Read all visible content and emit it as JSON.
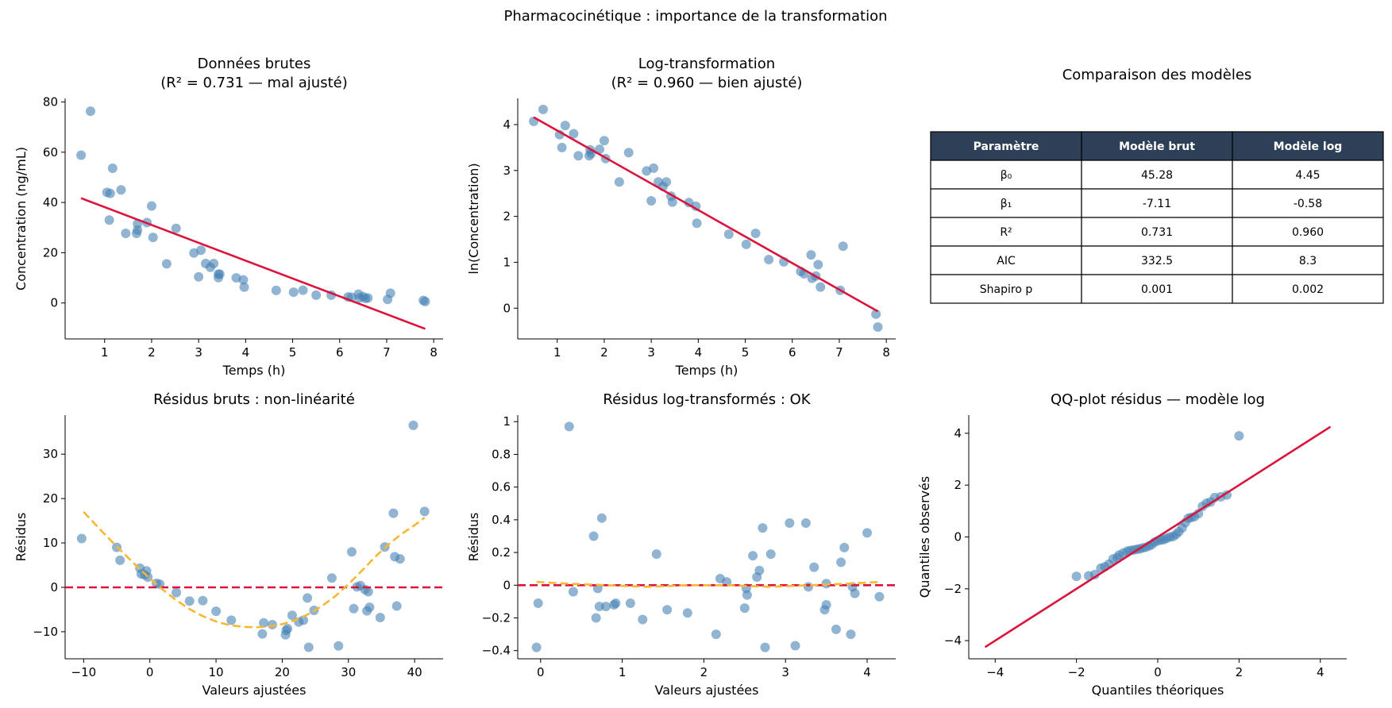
{
  "suptitle": "Pharmacocinétique : importance de la transformation",
  "colors": {
    "points": "#4682b4",
    "fit_line": "#dc143c",
    "lowess": "#f7b733",
    "table_header_bg": "#2e4057",
    "table_header_text": "#ffffff"
  },
  "table": {
    "title": "Comparaison des modèles",
    "headers": [
      "Paramètre",
      "Modèle brut",
      "Modèle log"
    ],
    "rows": [
      [
        "β₀",
        "45.28",
        "4.45"
      ],
      [
        "β₁",
        "-7.11",
        "-0.58"
      ],
      [
        "R²",
        "0.731",
        "0.960"
      ],
      [
        "AIC",
        "332.5",
        "8.3"
      ],
      [
        "Shapiro p",
        "0.001",
        "0.002"
      ]
    ]
  },
  "chart_data": [
    {
      "id": "raw",
      "type": "scatter",
      "title_lines": [
        "Données brutes",
        "(R² = 0.731 — mal ajusté)"
      ],
      "xlabel": "Temps (h)",
      "ylabel": "Concentration (ng/mL)",
      "xlim": [
        0.16,
        8.2
      ],
      "ylim": [
        -14.3,
        81.4
      ],
      "xticks": [
        1,
        2,
        3,
        4,
        5,
        6,
        7,
        8
      ],
      "yticks": [
        0,
        20,
        40,
        60,
        80
      ],
      "points": [
        [
          0.5,
          58.8
        ],
        [
          0.7,
          76.3
        ],
        [
          1.05,
          44.0
        ],
        [
          1.1,
          33.0
        ],
        [
          1.12,
          43.6
        ],
        [
          1.17,
          53.6
        ],
        [
          1.35,
          45.0
        ],
        [
          1.45,
          27.7
        ],
        [
          1.68,
          27.7
        ],
        [
          1.7,
          31.5
        ],
        [
          1.7,
          29.0
        ],
        [
          1.9,
          32.0
        ],
        [
          2.0,
          38.6
        ],
        [
          2.03,
          26.1
        ],
        [
          2.32,
          15.6
        ],
        [
          2.52,
          29.7
        ],
        [
          2.9,
          19.9
        ],
        [
          3.0,
          10.4
        ],
        [
          3.05,
          21.0
        ],
        [
          3.15,
          15.7
        ],
        [
          3.25,
          14.2
        ],
        [
          3.32,
          15.7
        ],
        [
          3.42,
          10.1
        ],
        [
          3.42,
          11.5
        ],
        [
          3.45,
          11.5
        ],
        [
          3.8,
          10.0
        ],
        [
          3.95,
          9.2
        ],
        [
          3.97,
          6.3
        ],
        [
          4.65,
          5.0
        ],
        [
          5.02,
          4.3
        ],
        [
          5.22,
          5.1
        ],
        [
          5.5,
          3.1
        ],
        [
          5.82,
          3.1
        ],
        [
          6.18,
          2.4
        ],
        [
          6.25,
          2.3
        ],
        [
          6.4,
          3.5
        ],
        [
          6.42,
          2.0
        ],
        [
          6.5,
          2.5
        ],
        [
          6.55,
          1.8
        ],
        [
          6.6,
          2.0
        ],
        [
          7.02,
          1.4
        ],
        [
          7.08,
          3.9
        ],
        [
          7.78,
          1.0
        ],
        [
          7.82,
          0.6
        ]
      ],
      "lines": [
        {
          "style": "solid",
          "color": "#dc143c",
          "points": [
            [
              0.5,
              41.7
            ],
            [
              7.82,
              -10.3
            ]
          ]
        }
      ]
    },
    {
      "id": "log",
      "type": "scatter",
      "title_lines": [
        "Log-transformation",
        "(R² = 0.960 — bien ajusté)"
      ],
      "xlabel": "Temps (h)",
      "ylabel": "ln(Concentration)",
      "xlim": [
        0.16,
        8.2
      ],
      "ylim": [
        -0.67,
        4.57
      ],
      "xticks": [
        1,
        2,
        3,
        4,
        5,
        6,
        7,
        8
      ],
      "yticks": [
        0,
        1,
        2,
        3,
        4
      ],
      "points": [
        [
          0.5,
          4.07
        ],
        [
          0.7,
          4.33
        ],
        [
          1.05,
          3.78
        ],
        [
          1.1,
          3.5
        ],
        [
          1.17,
          3.98
        ],
        [
          1.35,
          3.8
        ],
        [
          1.45,
          3.32
        ],
        [
          1.68,
          3.32
        ],
        [
          1.7,
          3.45
        ],
        [
          1.72,
          3.37
        ],
        [
          1.9,
          3.46
        ],
        [
          2.0,
          3.65
        ],
        [
          2.03,
          3.26
        ],
        [
          2.32,
          2.75
        ],
        [
          2.52,
          3.39
        ],
        [
          2.9,
          2.99
        ],
        [
          3.0,
          2.34
        ],
        [
          3.05,
          3.05
        ],
        [
          3.15,
          2.75
        ],
        [
          3.25,
          2.65
        ],
        [
          3.32,
          2.75
        ],
        [
          3.42,
          2.44
        ],
        [
          3.45,
          2.31
        ],
        [
          3.8,
          2.3
        ],
        [
          3.95,
          2.22
        ],
        [
          3.97,
          1.85
        ],
        [
          4.65,
          1.61
        ],
        [
          5.02,
          1.39
        ],
        [
          5.22,
          1.63
        ],
        [
          5.5,
          1.06
        ],
        [
          5.82,
          1.01
        ],
        [
          6.18,
          0.8
        ],
        [
          6.25,
          0.75
        ],
        [
          6.4,
          1.16
        ],
        [
          6.42,
          0.65
        ],
        [
          6.5,
          0.7
        ],
        [
          6.55,
          0.95
        ],
        [
          6.6,
          0.46
        ],
        [
          7.02,
          0.39
        ],
        [
          7.08,
          1.35
        ],
        [
          7.78,
          -0.13
        ],
        [
          7.82,
          -0.41
        ]
      ],
      "lines": [
        {
          "style": "solid",
          "color": "#dc143c",
          "points": [
            [
              0.5,
              4.16
            ],
            [
              7.82,
              -0.07
            ]
          ]
        }
      ]
    },
    {
      "id": "resid_raw",
      "type": "scatter",
      "title_lines": [
        "Résidus bruts : non-linéarité"
      ],
      "xlabel": "Valeurs ajustées",
      "ylabel": "Résidus",
      "xlim": [
        -12.8,
        44.3
      ],
      "ylim": [
        -16.1,
        38.8
      ],
      "xticks": [
        -10,
        0,
        10,
        20,
        30,
        40
      ],
      "yticks": [
        -10,
        0,
        10,
        20,
        30
      ],
      "points": [
        [
          -10.3,
          11.0
        ],
        [
          -5.0,
          9.0
        ],
        [
          -4.5,
          6.1
        ],
        [
          -1.5,
          4.3
        ],
        [
          -1.3,
          3.0
        ],
        [
          -0.8,
          2.8
        ],
        [
          -0.5,
          3.7
        ],
        [
          -0.3,
          2.3
        ],
        [
          1.0,
          0.9
        ],
        [
          1.5,
          0.7
        ],
        [
          4.0,
          -1.2
        ],
        [
          6.0,
          -3.1
        ],
        [
          8.0,
          -3.0
        ],
        [
          10.0,
          -5.4
        ],
        [
          12.3,
          -7.4
        ],
        [
          17.0,
          -10.5
        ],
        [
          17.2,
          -8.0
        ],
        [
          18.5,
          -8.4
        ],
        [
          20.5,
          -10.7
        ],
        [
          20.6,
          -9.7
        ],
        [
          20.8,
          -9.3
        ],
        [
          21.5,
          -6.3
        ],
        [
          22.5,
          -7.8
        ],
        [
          23.2,
          -7.4
        ],
        [
          23.8,
          -2.4
        ],
        [
          24.0,
          -13.5
        ],
        [
          24.8,
          -5.2
        ],
        [
          27.5,
          2.1
        ],
        [
          28.5,
          -13.2
        ],
        [
          30.5,
          8.0
        ],
        [
          30.8,
          -4.8
        ],
        [
          31.3,
          0.1
        ],
        [
          31.8,
          0.4
        ],
        [
          32.5,
          -0.5
        ],
        [
          32.8,
          -5.3
        ],
        [
          33.0,
          -1.0
        ],
        [
          33.2,
          -4.5
        ],
        [
          34.8,
          -6.8
        ],
        [
          35.5,
          9.1
        ],
        [
          36.8,
          16.7
        ],
        [
          37.0,
          6.9
        ],
        [
          37.3,
          -4.2
        ],
        [
          37.8,
          6.4
        ],
        [
          39.8,
          36.5
        ],
        [
          41.5,
          17.1
        ]
      ],
      "lines": [
        {
          "style": "dashed",
          "color": "#dc143c",
          "points": [
            [
              -12.8,
              0
            ],
            [
              44.3,
              0
            ]
          ]
        },
        {
          "style": "dashed",
          "color": "#f7b733",
          "points": [
            [
              -10,
              17.0
            ],
            [
              -8,
              13.8
            ],
            [
              -6,
              10.7
            ],
            [
              -4,
              7.7
            ],
            [
              -2,
              4.8
            ],
            [
              0,
              2.0
            ],
            [
              2,
              -0.6
            ],
            [
              4,
              -2.9
            ],
            [
              6,
              -4.9
            ],
            [
              8,
              -6.5
            ],
            [
              10,
              -7.7
            ],
            [
              12,
              -8.5
            ],
            [
              14,
              -8.9
            ],
            [
              16,
              -9.0
            ],
            [
              18,
              -8.8
            ],
            [
              20,
              -8.3
            ],
            [
              22,
              -7.4
            ],
            [
              24,
              -6.0
            ],
            [
              26,
              -4.2
            ],
            [
              28,
              -2.0
            ],
            [
              30,
              0.7
            ],
            [
              32,
              3.7
            ],
            [
              34,
              6.8
            ],
            [
              36,
              9.6
            ],
            [
              38,
              12.0
            ],
            [
              40,
              14.0
            ],
            [
              41.5,
              15.7
            ]
          ]
        }
      ]
    },
    {
      "id": "resid_log",
      "type": "scatter",
      "title_lines": [
        "Résidus log-transformés : OK"
      ],
      "xlabel": "Valeurs ajustées",
      "ylabel": "Résidus",
      "xlim": [
        -0.28,
        4.35
      ],
      "ylim": [
        -0.45,
        1.04
      ],
      "xticks": [
        0,
        1,
        2,
        3,
        4
      ],
      "yticks": [
        -0.4,
        -0.2,
        0.0,
        0.2,
        0.4,
        0.6,
        0.8,
        1.0
      ],
      "points": [
        [
          -0.05,
          -0.38
        ],
        [
          -0.03,
          -0.11
        ],
        [
          0.35,
          0.97
        ],
        [
          0.4,
          -0.04
        ],
        [
          0.65,
          0.3
        ],
        [
          0.68,
          -0.2
        ],
        [
          0.7,
          -0.02
        ],
        [
          0.72,
          -0.13
        ],
        [
          0.75,
          0.41
        ],
        [
          0.8,
          -0.13
        ],
        [
          0.9,
          -0.12
        ],
        [
          0.92,
          -0.11
        ],
        [
          1.1,
          -0.11
        ],
        [
          1.25,
          -0.21
        ],
        [
          1.42,
          0.19
        ],
        [
          1.55,
          -0.15
        ],
        [
          1.8,
          -0.17
        ],
        [
          2.15,
          -0.3
        ],
        [
          2.2,
          0.04
        ],
        [
          2.28,
          0.02
        ],
        [
          2.5,
          -0.14
        ],
        [
          2.52,
          -0.02
        ],
        [
          2.53,
          -0.06
        ],
        [
          2.6,
          0.18
        ],
        [
          2.65,
          0.05
        ],
        [
          2.68,
          0.09
        ],
        [
          2.72,
          0.35
        ],
        [
          2.75,
          -0.38
        ],
        [
          2.82,
          0.19
        ],
        [
          3.05,
          0.38
        ],
        [
          3.12,
          -0.37
        ],
        [
          3.25,
          0.38
        ],
        [
          3.28,
          -0.01
        ],
        [
          3.35,
          0.11
        ],
        [
          3.48,
          -0.15
        ],
        [
          3.5,
          -0.12
        ],
        [
          3.5,
          0.01
        ],
        [
          3.62,
          -0.27
        ],
        [
          3.68,
          0.14
        ],
        [
          3.72,
          0.23
        ],
        [
          3.8,
          -0.3
        ],
        [
          3.82,
          -0.01
        ],
        [
          3.85,
          -0.05
        ],
        [
          4.0,
          0.32
        ],
        [
          4.15,
          -0.07
        ]
      ],
      "lines": [
        {
          "style": "dashed",
          "color": "#dc143c",
          "points": [
            [
              -0.28,
              0
            ],
            [
              4.35,
              0
            ]
          ]
        },
        {
          "style": "dashed",
          "color": "#f7b733",
          "points": [
            [
              -0.05,
              0.02
            ],
            [
              0.3,
              0.01
            ],
            [
              0.8,
              0.0
            ],
            [
              1.3,
              -0.01
            ],
            [
              1.8,
              0.0
            ],
            [
              2.3,
              0.0
            ],
            [
              2.8,
              -0.01
            ],
            [
              3.3,
              0.0
            ],
            [
              3.8,
              0.01
            ],
            [
              4.15,
              0.02
            ]
          ]
        }
      ]
    },
    {
      "id": "qq",
      "type": "scatter",
      "title_lines": [
        "QQ-plot résidus — modèle log"
      ],
      "xlabel": "Quantiles théoriques",
      "ylabel": "Quantiles observés",
      "xlim": [
        -4.65,
        4.65
      ],
      "ylim": [
        -4.7,
        4.7
      ],
      "xticks": [
        -4,
        -2,
        0,
        2,
        4
      ],
      "yticks": [
        -4,
        -2,
        0,
        2,
        4
      ],
      "points": [
        [
          -2.0,
          -1.52
        ],
        [
          -1.7,
          -1.5
        ],
        [
          -1.55,
          -1.45
        ],
        [
          -1.4,
          -1.2
        ],
        [
          -1.3,
          -1.15
        ],
        [
          -1.2,
          -1.05
        ],
        [
          -1.1,
          -0.85
        ],
        [
          -1.0,
          -0.8
        ],
        [
          -0.95,
          -0.7
        ],
        [
          -0.85,
          -0.62
        ],
        [
          -0.75,
          -0.55
        ],
        [
          -0.68,
          -0.52
        ],
        [
          -0.6,
          -0.5
        ],
        [
          -0.52,
          -0.48
        ],
        [
          -0.45,
          -0.46
        ],
        [
          -0.38,
          -0.43
        ],
        [
          -0.3,
          -0.4
        ],
        [
          -0.22,
          -0.35
        ],
        [
          -0.15,
          -0.3
        ],
        [
          -0.08,
          -0.2
        ],
        [
          0.0,
          -0.15
        ],
        [
          0.08,
          -0.12
        ],
        [
          0.15,
          -0.1
        ],
        [
          0.22,
          -0.05
        ],
        [
          0.3,
          0.0
        ],
        [
          0.38,
          0.02
        ],
        [
          0.45,
          0.1
        ],
        [
          0.52,
          0.2
        ],
        [
          0.6,
          0.35
        ],
        [
          0.68,
          0.55
        ],
        [
          0.75,
          0.72
        ],
        [
          0.82,
          0.75
        ],
        [
          0.9,
          0.78
        ],
        [
          1.0,
          0.9
        ],
        [
          1.1,
          1.18
        ],
        [
          1.2,
          1.3
        ],
        [
          1.3,
          1.35
        ],
        [
          1.4,
          1.52
        ],
        [
          1.55,
          1.55
        ],
        [
          1.7,
          1.62
        ],
        [
          2.0,
          3.9
        ]
      ],
      "lines": [
        {
          "style": "solid",
          "color": "#dc143c",
          "points": [
            [
              -4.25,
              -4.25
            ],
            [
              4.25,
              4.25
            ]
          ]
        }
      ]
    }
  ]
}
